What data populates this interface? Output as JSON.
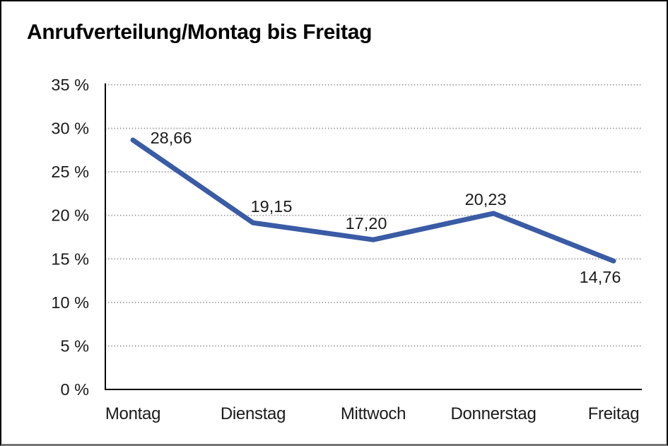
{
  "title": "Anrufverteilung/Montag bis Freitag",
  "colors": {
    "line": "#3A5BA5",
    "grid": "#909090",
    "axis": "#000000",
    "text": "#1A1A1A",
    "frame_border": "#000000"
  },
  "chart_data": {
    "type": "line",
    "title": "Anrufverteilung/Montag bis Freitag",
    "categories": [
      "Montag",
      "Dienstag",
      "Mittwoch",
      "Donnerstag",
      "Freitag"
    ],
    "values": [
      28.66,
      19.15,
      17.2,
      20.23,
      14.76
    ],
    "value_labels": [
      "28,66",
      "19,15",
      "17,20",
      "20,23",
      "14,76"
    ],
    "xlabel": "",
    "ylabel": "",
    "ylim": [
      0,
      35
    ],
    "ytick_step": 5,
    "ytick_labels": [
      "0 %",
      "5 %",
      "10 %",
      "15 %",
      "20 %",
      "25 %",
      "30 %",
      "35 %"
    ],
    "grid": "horizontal-dotted",
    "legend": "none"
  }
}
